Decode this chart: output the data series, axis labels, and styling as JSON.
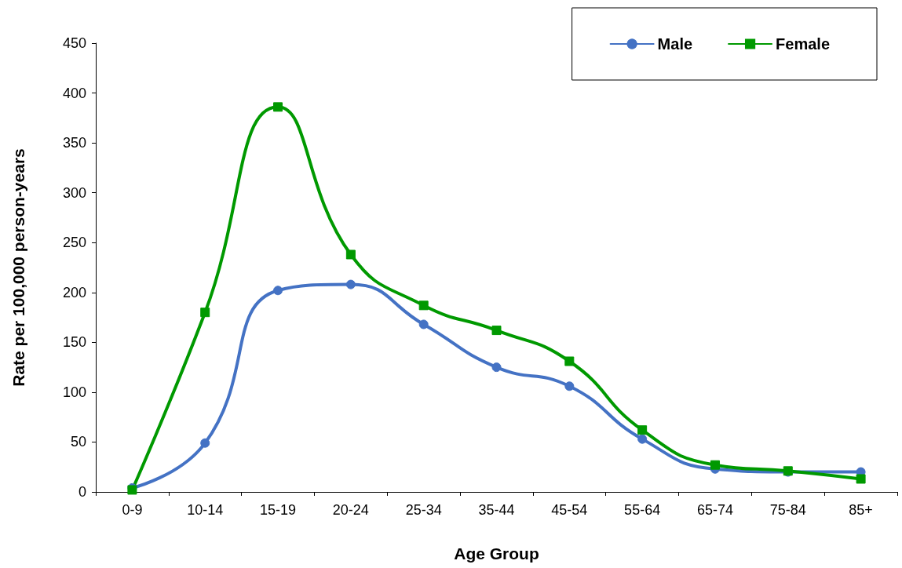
{
  "chart_data": {
    "type": "line",
    "xlabel": "Age Group",
    "ylabel": "Rate per 100,000 person-years",
    "categories": [
      "0-9",
      "10-14",
      "15-19",
      "20-24",
      "25-34",
      "35-44",
      "45-54",
      "55-64",
      "65-74",
      "75-84",
      "85+"
    ],
    "series": [
      {
        "name": "Male",
        "color": "#4472c4",
        "marker": "circle",
        "values": [
          4,
          49,
          202,
          208,
          168,
          125,
          106,
          53,
          23,
          20,
          20
        ]
      },
      {
        "name": "Female",
        "color": "#009900",
        "marker": "square",
        "values": [
          2,
          180,
          386,
          238,
          187,
          162,
          131,
          62,
          27,
          21,
          13
        ]
      }
    ],
    "ylim": [
      0,
      450
    ],
    "yticks": [
      0,
      50,
      100,
      150,
      200,
      250,
      300,
      350,
      400,
      450
    ],
    "grid": false,
    "legend": "top right",
    "line_style": "solid"
  }
}
